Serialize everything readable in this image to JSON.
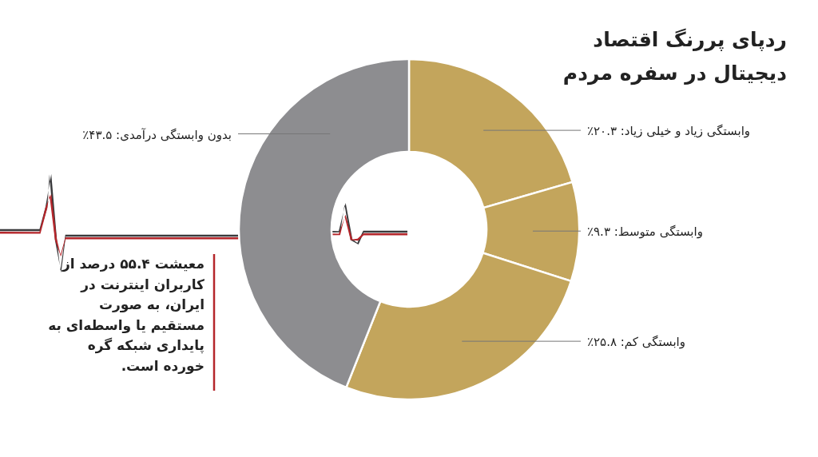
{
  "chart_data": {
    "type": "donut",
    "title": "ردپای پررنگ اقتصاد دیجیتال در سفره مردم",
    "categories": [
      "وابستگی زیاد و خیلی زیاد",
      "وابستگی متوسط",
      "وابستگی کم",
      "بدون وابستگی درآمدی"
    ],
    "values": [
      20.3,
      9.3,
      25.8,
      43.5
    ],
    "value_labels": [
      "۲۰.۳٪",
      "۹.۳٪",
      "۲۵.۸٪",
      "۴۳.۵٪"
    ],
    "colors": [
      "#c3a55c",
      "#c3a55c",
      "#c3a55c",
      "#8d8d90"
    ],
    "annotations": [
      "معیشت ۵۵.۴ درصد از کاربران اینترنت در ایران، به صورت مستقیم یا واسطه‌ای به پایداری شبکه گره خورده است."
    ]
  }
}
